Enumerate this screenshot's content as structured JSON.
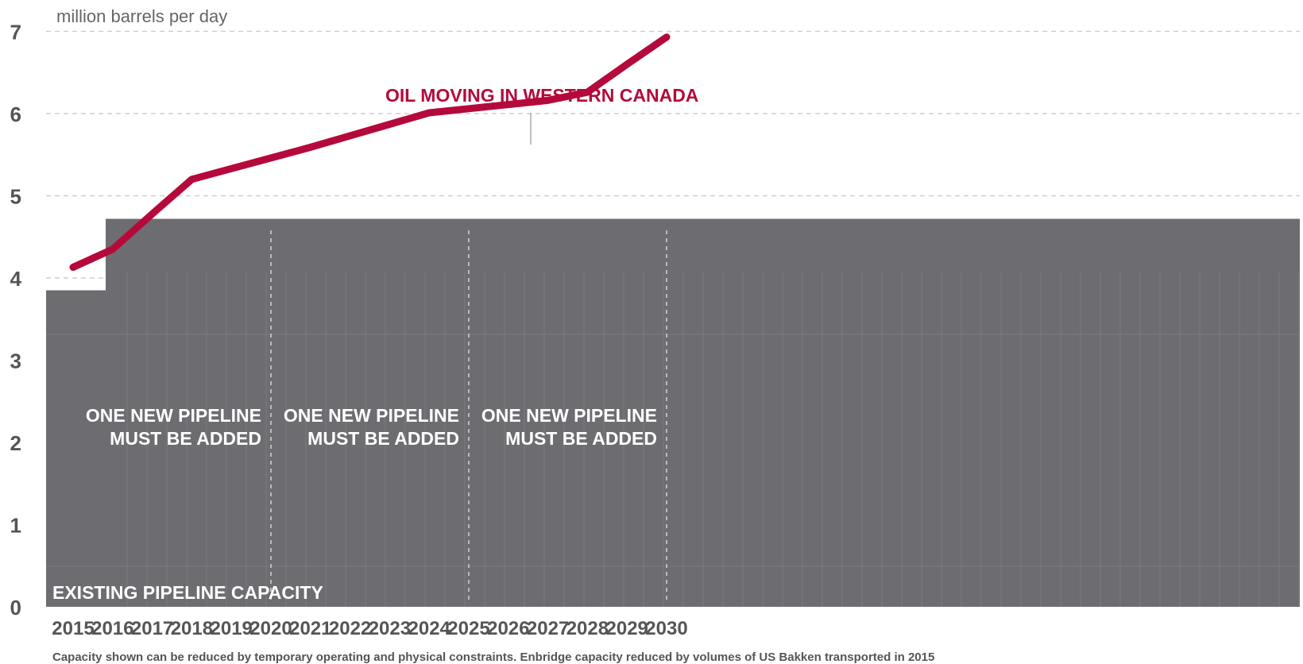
{
  "chart_data": {
    "type": "line",
    "ylabel": "million barrels per day",
    "ylim": [
      0,
      7
    ],
    "yticks": [
      0,
      1,
      2,
      3,
      4,
      5,
      6,
      7
    ],
    "categories": [
      "2015",
      "2016",
      "2017",
      "2018",
      "2019",
      "2020",
      "2021",
      "2022",
      "2023",
      "2024",
      "2025",
      "2026",
      "2027",
      "2028",
      "2029",
      "2030"
    ],
    "series": [
      {
        "name": "OIL MOVING IN WESTERN CANADA",
        "color": "#b5093c",
        "values": [
          4.13,
          4.35,
          4.78,
          5.2,
          5.33,
          5.46,
          5.59,
          5.73,
          5.87,
          6.01,
          6.06,
          6.11,
          6.16,
          6.26,
          6.6,
          6.93
        ]
      }
    ],
    "capacity": {
      "label": "EXISTING PIPELINE CAPACITY",
      "color": "#6d6d71",
      "steps": [
        {
          "from": "2015",
          "value": 3.85
        },
        {
          "from": "2015.4",
          "value": 4.72
        }
      ]
    },
    "annotations": [
      {
        "line1": "ONE NEW PIPELINE",
        "line2": "MUST BE ADDED",
        "year": 2020
      },
      {
        "line1": "ONE NEW PIPELINE",
        "line2": "MUST BE ADDED",
        "year": 2025
      },
      {
        "line1": "ONE NEW PIPELINE",
        "line2": "MUST BE ADDED",
        "year": 2030
      }
    ],
    "note": "Capacity shown can be reduced by temporary operating and physical constraints. Enbridge capacity reduced by volumes of US Bakken transported in 2015",
    "grid": true
  }
}
